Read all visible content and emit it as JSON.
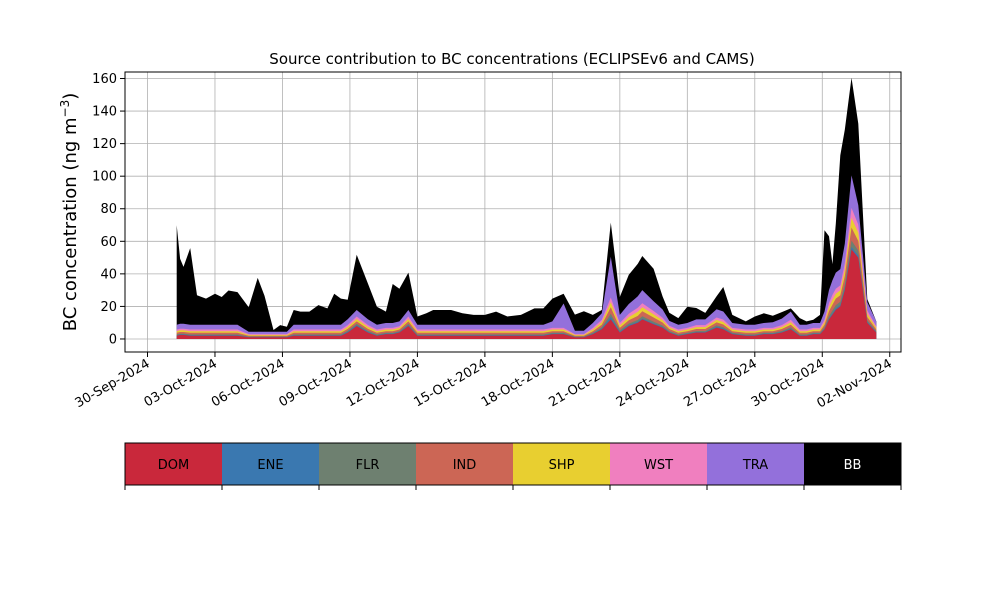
{
  "chart_data": {
    "type": "area",
    "stacked": true,
    "title": "Source contribution to BC concentrations (ECLIPSEv6 and CAMS)",
    "ylabel": "BC concentration (ng m",
    "ylabel_sup": "−3",
    "ylabel_close": ")",
    "xlabel": "",
    "ylim": [
      -8,
      164
    ],
    "yticks": [
      0,
      20,
      40,
      60,
      80,
      100,
      120,
      140,
      160
    ],
    "ytick_labels": [
      "0",
      "20",
      "40",
      "60",
      "80",
      "100",
      "120",
      "140",
      "160"
    ],
    "xlim_days": [
      -1.0,
      33.5
    ],
    "xtick_labels": [
      "30-Sep-2024",
      "03-Oct-2024",
      "06-Oct-2024",
      "09-Oct-2024",
      "12-Oct-2024",
      "15-Oct-2024",
      "18-Oct-2024",
      "21-Oct-2024",
      "24-Oct-2024",
      "27-Oct-2024",
      "30-Oct-2024",
      "02-Nov-2024"
    ],
    "xtick_days": [
      0,
      3,
      6,
      9,
      12,
      15,
      18,
      21,
      24,
      27,
      30,
      33
    ],
    "grid": true,
    "x_days": [
      1.3,
      1.45,
      1.6,
      1.9,
      2.2,
      2.6,
      3.0,
      3.3,
      3.6,
      4.0,
      4.5,
      4.9,
      5.2,
      5.6,
      5.9,
      6.2,
      6.5,
      6.8,
      7.2,
      7.6,
      8.0,
      8.3,
      8.6,
      8.9,
      9.3,
      9.8,
      10.2,
      10.6,
      10.9,
      11.2,
      11.6,
      12.0,
      12.4,
      12.7,
      13.0,
      13.5,
      14.0,
      14.5,
      15.0,
      15.5,
      16.0,
      16.6,
      17.2,
      17.6,
      18.0,
      18.5,
      19.0,
      19.4,
      19.8,
      20.2,
      20.6,
      21.0,
      21.4,
      21.8,
      22.0,
      22.5,
      22.9,
      23.2,
      23.6,
      24.0,
      24.4,
      24.8,
      25.3,
      25.6,
      26.0,
      26.6,
      27.0,
      27.4,
      27.8,
      28.2,
      28.6,
      29.0,
      29.3,
      29.6,
      29.9,
      30.1,
      30.3,
      30.45,
      30.6,
      30.8,
      31.0,
      31.3,
      31.6,
      32.0,
      32.4
    ],
    "series": [
      {
        "name": "DOM",
        "color": "#c9283b",
        "values": [
          2,
          2.5,
          2.5,
          2,
          2,
          2,
          2,
          2,
          2,
          2,
          1,
          1,
          1,
          1,
          1,
          1,
          2,
          2,
          2,
          2,
          2,
          2,
          2,
          4,
          8,
          4,
          2,
          3,
          3,
          4,
          8,
          2,
          2,
          2,
          2,
          2,
          2,
          2,
          2,
          2,
          2,
          2,
          2,
          2,
          3,
          3,
          1,
          1,
          3,
          6,
          12,
          4,
          8,
          10,
          12,
          9,
          7,
          4,
          2,
          3,
          4,
          4,
          7,
          6,
          3,
          2,
          2,
          3,
          3,
          4,
          6,
          2,
          2,
          3,
          3,
          6,
          12,
          15,
          18,
          20,
          30,
          55,
          50,
          10,
          4
        ]
      },
      {
        "name": "ENE",
        "color": "#3a78b0",
        "values": [
          0.3,
          0.3,
          0.3,
          0.3,
          0.3,
          0.3,
          0.3,
          0.3,
          0.3,
          0.3,
          0.2,
          0.2,
          0.2,
          0.2,
          0.2,
          0.2,
          0.3,
          0.3,
          0.3,
          0.3,
          0.3,
          0.3,
          0.3,
          0.4,
          0.5,
          0.4,
          0.3,
          0.3,
          0.3,
          0.3,
          0.5,
          0.3,
          0.3,
          0.3,
          0.3,
          0.3,
          0.3,
          0.3,
          0.3,
          0.3,
          0.3,
          0.3,
          0.3,
          0.3,
          0.3,
          0.3,
          0.2,
          0.2,
          0.3,
          0.5,
          1.5,
          0.5,
          0.5,
          0.5,
          0.6,
          0.5,
          0.4,
          0.3,
          0.3,
          0.3,
          0.3,
          0.3,
          0.5,
          0.5,
          0.3,
          0.3,
          0.3,
          0.3,
          0.3,
          0.3,
          0.4,
          0.3,
          0.3,
          0.3,
          0.3,
          0.4,
          0.6,
          0.7,
          0.8,
          0.9,
          1,
          1.5,
          1.2,
          0.5,
          0.3
        ]
      },
      {
        "name": "FLR",
        "color": "#6e8070",
        "values": [
          0.5,
          0.5,
          0.5,
          0.5,
          0.5,
          0.5,
          0.5,
          0.5,
          0.5,
          0.5,
          0.3,
          0.3,
          0.3,
          0.3,
          0.3,
          0.3,
          0.5,
          0.5,
          0.5,
          0.5,
          0.5,
          0.5,
          0.5,
          0.6,
          0.8,
          0.6,
          0.5,
          0.5,
          0.5,
          0.5,
          0.8,
          0.5,
          0.5,
          0.5,
          0.5,
          0.5,
          0.5,
          0.5,
          0.5,
          0.5,
          0.5,
          0.5,
          0.5,
          0.5,
          0.5,
          0.5,
          0.3,
          0.3,
          0.5,
          0.8,
          2,
          0.8,
          1,
          1.2,
          1.4,
          1.2,
          0.9,
          0.6,
          0.5,
          0.5,
          0.6,
          0.6,
          0.9,
          0.8,
          0.5,
          0.5,
          0.5,
          0.5,
          0.5,
          0.6,
          0.8,
          0.5,
          0.5,
          0.5,
          0.5,
          0.8,
          1.5,
          1.8,
          2,
          2,
          2.5,
          4,
          3,
          1,
          0.5
        ]
      },
      {
        "name": "IND",
        "color": "#cc6655",
        "values": [
          1,
          1,
          1,
          1,
          1,
          1,
          1,
          1,
          1,
          1,
          0.5,
          0.5,
          0.5,
          0.5,
          0.5,
          0.5,
          1,
          1,
          1,
          1,
          1,
          1,
          1,
          1.2,
          1.5,
          1.2,
          1,
          1,
          1,
          1,
          1.5,
          1,
          1,
          1,
          1,
          1,
          1,
          1,
          1,
          1,
          1,
          1,
          1,
          1,
          1,
          1,
          0.5,
          0.5,
          1,
          1.5,
          4,
          1.5,
          2,
          2.5,
          3,
          2.5,
          1.8,
          1.2,
          1,
          1,
          1.2,
          1.2,
          1.8,
          1.6,
          1,
          1,
          1,
          1,
          1,
          1.2,
          1.6,
          1,
          1,
          1,
          1,
          1.6,
          3,
          3.5,
          4,
          4,
          5,
          8,
          6,
          2,
          1
        ]
      },
      {
        "name": "SHP",
        "color": "#e8cf30",
        "values": [
          1,
          1,
          1,
          1,
          1,
          1,
          1,
          1,
          1,
          1,
          0.5,
          0.5,
          0.5,
          0.5,
          0.5,
          0.5,
          1,
          1,
          1,
          1,
          1,
          1,
          1,
          1.2,
          1.5,
          1.2,
          1,
          1,
          1,
          1,
          1.5,
          1,
          1,
          1,
          1,
          1,
          1,
          1,
          1,
          1,
          1,
          1,
          1,
          1,
          1,
          1,
          0.5,
          0.5,
          1,
          1.5,
          3,
          1.5,
          2,
          2.5,
          2.5,
          2,
          1.5,
          1,
          1,
          1,
          1.2,
          1.2,
          1.5,
          1.5,
          1,
          1,
          1,
          1,
          1,
          1.2,
          1.5,
          1,
          1,
          1,
          1,
          1.5,
          2.5,
          3,
          3,
          3,
          4,
          6,
          5,
          2,
          1
        ]
      },
      {
        "name": "WST",
        "color": "#f07fbf",
        "values": [
          1,
          1,
          1,
          1,
          1,
          1,
          1,
          1,
          1,
          1,
          0.5,
          0.5,
          0.5,
          0.5,
          0.5,
          0.5,
          1,
          1,
          1,
          1,
          1,
          1,
          1,
          1.2,
          1.5,
          1.2,
          1,
          1,
          1,
          1,
          1.5,
          1,
          1,
          1,
          1,
          1,
          1,
          1,
          1,
          1,
          1,
          1,
          1,
          1,
          1,
          1,
          0.5,
          0.5,
          1,
          1.5,
          3,
          1.5,
          2,
          2.5,
          2.5,
          2,
          1.5,
          1,
          1,
          1,
          1.2,
          1.2,
          1.5,
          1.5,
          1,
          1,
          1,
          1,
          1,
          1.2,
          1.5,
          1,
          1,
          1,
          1,
          1.5,
          2.5,
          3,
          3,
          3,
          4,
          6,
          5,
          2,
          1
        ]
      },
      {
        "name": "TRA",
        "color": "#9370db",
        "values": [
          3,
          3,
          3,
          3,
          3,
          3,
          3,
          3,
          3,
          3,
          1.5,
          1.5,
          1.5,
          1.5,
          1.5,
          1.5,
          3,
          3,
          3,
          3,
          3,
          3,
          3,
          3.5,
          4,
          3.5,
          3,
          3,
          3,
          3,
          4,
          3,
          3,
          3,
          3,
          3,
          3,
          3,
          3,
          3,
          3,
          3,
          3,
          3,
          4,
          15,
          2,
          2,
          3,
          4,
          25,
          5,
          6,
          7,
          8,
          6,
          5,
          3,
          3,
          3,
          3.5,
          3.5,
          5,
          5,
          3,
          3,
          3,
          3,
          3.5,
          4,
          5,
          3,
          3,
          3,
          3,
          5,
          8,
          9,
          10,
          10,
          12,
          20,
          12,
          5,
          3
        ]
      },
      {
        "name": "BB",
        "color": "#000000",
        "values": [
          61,
          40,
          35,
          47,
          18,
          16,
          19,
          17,
          21,
          20,
          15,
          33,
          22,
          1,
          4,
          3,
          9,
          8,
          8,
          12,
          10,
          19,
          16,
          12,
          34,
          22,
          11,
          7,
          24,
          20,
          23,
          5,
          7,
          9,
          9,
          9,
          7,
          6,
          6,
          8,
          5,
          6,
          10,
          10,
          14,
          6,
          10,
          12,
          5,
          2,
          21,
          11,
          18,
          20,
          21,
          20,
          8,
          5,
          4,
          10,
          7,
          4,
          8,
          15,
          5,
          2,
          5,
          6,
          4,
          4,
          2,
          4,
          2,
          2,
          5,
          50,
          33,
          10,
          30,
          70,
          70,
          60,
          50,
          2,
          0
        ]
      }
    ],
    "legend": [
      {
        "label": "DOM",
        "color": "#c9283b",
        "text_color": "#000000"
      },
      {
        "label": "ENE",
        "color": "#3a78b0",
        "text_color": "#000000"
      },
      {
        "label": "FLR",
        "color": "#6e8070",
        "text_color": "#000000"
      },
      {
        "label": "IND",
        "color": "#cc6655",
        "text_color": "#000000"
      },
      {
        "label": "SHP",
        "color": "#e8cf30",
        "text_color": "#000000"
      },
      {
        "label": "WST",
        "color": "#f07fbf",
        "text_color": "#000000"
      },
      {
        "label": "TRA",
        "color": "#9370db",
        "text_color": "#000000"
      },
      {
        "label": "BB",
        "color": "#000000",
        "text_color": "#ffffff"
      }
    ],
    "legend_placement": "below plot, horizontal color bar"
  }
}
